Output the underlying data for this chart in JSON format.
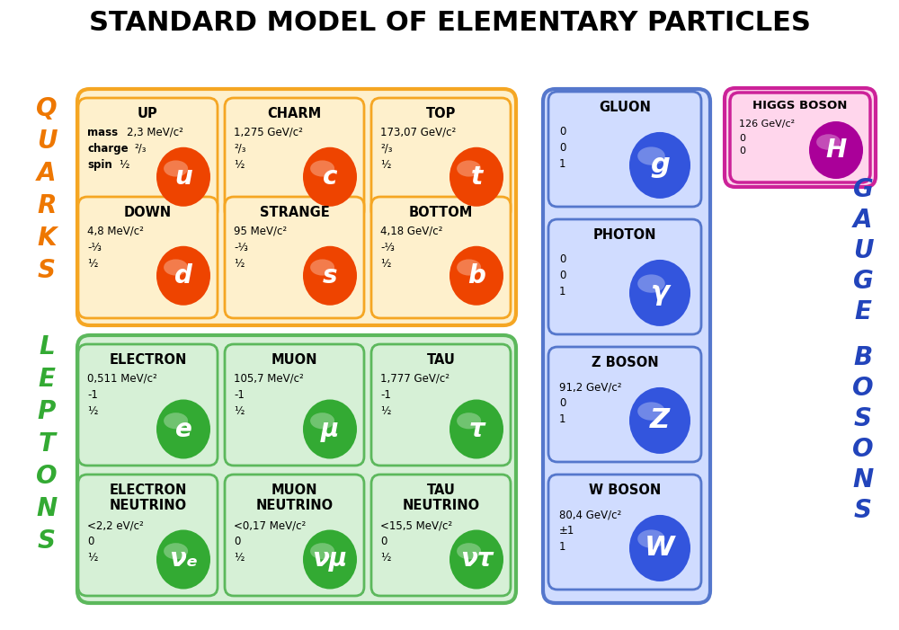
{
  "title": "STANDARD MODEL OF ELEMENTARY PARTICLES",
  "quarks_bg": "#FEF0CC",
  "quarks_border": "#F5A623",
  "leptons_bg": "#D6F0D6",
  "leptons_border": "#5CB85C",
  "gauge_bg": "#D0DCFF",
  "gauge_border": "#5577CC",
  "higgs_bg": "#FFD6EC",
  "higgs_border": "#CC2299",
  "quark_ball_color": "#EE4400",
  "lepton_ball_color": "#33AA33",
  "gauge_ball_color": "#3355DD",
  "higgs_ball_color": "#AA0099",
  "quarks_label_color": "#EE7700",
  "leptons_label_color": "#33AA33",
  "gauge_label_color": "#2244BB",
  "quarks_rows": [
    [
      {
        "name": "UP",
        "mass": "2,3 MeV/c²",
        "charge": "²/₃",
        "spin": "½",
        "symbol": "u",
        "show_labels": true
      },
      {
        "name": "CHARM",
        "mass": "1,275 GeV/c²",
        "charge": "²/₃",
        "spin": "½",
        "symbol": "c",
        "show_labels": false
      },
      {
        "name": "TOP",
        "mass": "173,07 GeV/c²",
        "charge": "²/₃",
        "spin": "½",
        "symbol": "t",
        "show_labels": false
      }
    ],
    [
      {
        "name": "DOWN",
        "mass": "4,8 MeV/c²",
        "charge": "-⅓",
        "spin": "½",
        "symbol": "d",
        "show_labels": false
      },
      {
        "name": "STRANGE",
        "mass": "95 MeV/c²",
        "charge": "-⅓",
        "spin": "½",
        "symbol": "s",
        "show_labels": false
      },
      {
        "name": "BOTTOM",
        "mass": "4,18 GeV/c²",
        "charge": "-⅓",
        "spin": "½",
        "symbol": "b",
        "show_labels": false
      }
    ]
  ],
  "lepton_rows": [
    [
      {
        "name": "ELECTRON",
        "mass": "0,511 MeV/c²",
        "charge": "-1",
        "spin": "½",
        "symbol": "e"
      },
      {
        "name": "MUON",
        "mass": "105,7 MeV/c²",
        "charge": "-1",
        "spin": "½",
        "symbol": "μ"
      },
      {
        "name": "TAU",
        "mass": "1,777 GeV/c²",
        "charge": "-1",
        "spin": "½",
        "symbol": "τ"
      }
    ],
    [
      {
        "name": "ELECTRON\nNEUTRINO",
        "mass": "<2,2 eV/c²",
        "charge": "0",
        "spin": "½",
        "symbol": "νₑ"
      },
      {
        "name": "MUON\nNEUTRINO",
        "mass": "<0,17 MeV/c²",
        "charge": "0",
        "spin": "½",
        "symbol": "νμ"
      },
      {
        "name": "TAU\nNEUTRINO",
        "mass": "<15,5 MeV/c²",
        "charge": "0",
        "spin": "½",
        "symbol": "ντ"
      }
    ]
  ],
  "gauge_bosons": [
    {
      "name": "GLUON",
      "mass": "0",
      "charge": "0",
      "spin": "1",
      "symbol": "g"
    },
    {
      "name": "PHOTON",
      "mass": "0",
      "charge": "0",
      "spin": "1",
      "symbol": "γ"
    },
    {
      "name": "Z BOSON",
      "mass": "91,2 GeV/c²",
      "charge": "0",
      "spin": "1",
      "symbol": "Z"
    },
    {
      "name": "W BOSON",
      "mass": "80,4 GeV/c²",
      "charge": "±1",
      "spin": "1",
      "symbol": "W"
    }
  ],
  "higgs": {
    "name": "HIGGS BOSON",
    "mass": "126 GeV/c²",
    "charge": "0",
    "spin": "0",
    "symbol": "H"
  }
}
